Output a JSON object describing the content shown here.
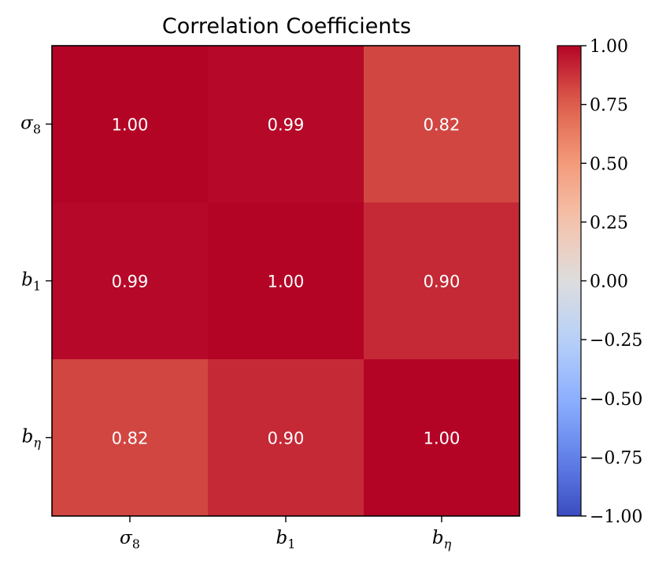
{
  "chart_data": {
    "type": "heatmap",
    "title": "Correlation Coefficients",
    "x_labels": [
      {
        "base": "σ",
        "sub": "8"
      },
      {
        "base": "b",
        "sub": "1"
      },
      {
        "base": "b",
        "sub": "η"
      }
    ],
    "y_labels": [
      {
        "base": "σ",
        "sub": "8"
      },
      {
        "base": "b",
        "sub": "1"
      },
      {
        "base": "b",
        "sub": "η"
      }
    ],
    "values": [
      [
        1.0,
        0.99,
        0.82
      ],
      [
        0.99,
        1.0,
        0.9
      ],
      [
        0.82,
        0.9,
        1.0
      ]
    ],
    "cell_labels": [
      [
        "1.00",
        "0.99",
        "0.82"
      ],
      [
        "0.99",
        "1.00",
        "0.90"
      ],
      [
        "0.82",
        "0.90",
        "1.00"
      ]
    ],
    "colorscale": "coolwarm",
    "vmin": -1.0,
    "vmax": 1.0,
    "colorbar_ticks": [
      1.0,
      0.75,
      0.5,
      0.25,
      0.0,
      -0.25,
      -0.5,
      -0.75,
      -1.0
    ],
    "colorbar_tick_labels": [
      "1.00",
      "0.75",
      "0.50",
      "0.25",
      "0.00",
      "−0.25",
      "−0.50",
      "−0.75",
      "−1.00"
    ]
  }
}
